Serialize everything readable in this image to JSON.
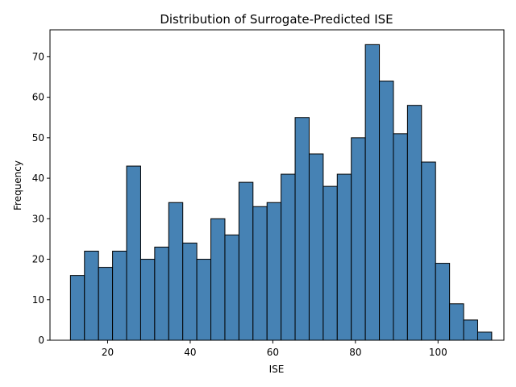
{
  "colors": {
    "bar_fill": "#4682B4",
    "bar_edge": "#000000"
  },
  "chart_data": {
    "type": "bar",
    "title": "Distribution of Surrogate-Predicted ISE",
    "xlabel": "ISE",
    "ylabel": "Frequency",
    "xlim": [
      6.05,
      115.95
    ],
    "ylim": [
      0,
      76.65
    ],
    "xticks": [
      20,
      40,
      60,
      80,
      100
    ],
    "yticks": [
      0,
      10,
      20,
      30,
      40,
      50,
      60,
      70
    ],
    "bins": [
      {
        "x0": 11.0,
        "x1": 14.4,
        "value": 16
      },
      {
        "x0": 14.4,
        "x1": 17.8,
        "value": 22
      },
      {
        "x0": 17.8,
        "x1": 21.2,
        "value": 18
      },
      {
        "x0": 21.2,
        "x1": 24.6,
        "value": 22
      },
      {
        "x0": 24.6,
        "x1": 28.0,
        "value": 43
      },
      {
        "x0": 28.0,
        "x1": 31.4,
        "value": 20
      },
      {
        "x0": 31.4,
        "x1": 34.8,
        "value": 23
      },
      {
        "x0": 34.8,
        "x1": 38.2,
        "value": 34
      },
      {
        "x0": 38.2,
        "x1": 41.6,
        "value": 24
      },
      {
        "x0": 41.6,
        "x1": 45.0,
        "value": 20
      },
      {
        "x0": 45.0,
        "x1": 48.4,
        "value": 30
      },
      {
        "x0": 48.4,
        "x1": 51.8,
        "value": 26
      },
      {
        "x0": 51.8,
        "x1": 55.2,
        "value": 39
      },
      {
        "x0": 55.2,
        "x1": 58.6,
        "value": 33
      },
      {
        "x0": 58.6,
        "x1": 62.0,
        "value": 34
      },
      {
        "x0": 62.0,
        "x1": 65.4,
        "value": 41
      },
      {
        "x0": 65.4,
        "x1": 68.8,
        "value": 55
      },
      {
        "x0": 68.8,
        "x1": 72.2,
        "value": 46
      },
      {
        "x0": 72.2,
        "x1": 75.6,
        "value": 38
      },
      {
        "x0": 75.6,
        "x1": 79.0,
        "value": 41
      },
      {
        "x0": 79.0,
        "x1": 82.4,
        "value": 50
      },
      {
        "x0": 82.4,
        "x1": 85.8,
        "value": 73
      },
      {
        "x0": 85.8,
        "x1": 89.2,
        "value": 64
      },
      {
        "x0": 89.2,
        "x1": 92.6,
        "value": 51
      },
      {
        "x0": 92.6,
        "x1": 96.0,
        "value": 58
      },
      {
        "x0": 96.0,
        "x1": 99.4,
        "value": 44
      },
      {
        "x0": 99.4,
        "x1": 102.8,
        "value": 19
      },
      {
        "x0": 102.8,
        "x1": 106.2,
        "value": 9
      },
      {
        "x0": 106.2,
        "x1": 109.6,
        "value": 5
      },
      {
        "x0": 109.6,
        "x1": 113.0,
        "value": 2
      }
    ],
    "grid": false,
    "legend": "none"
  }
}
